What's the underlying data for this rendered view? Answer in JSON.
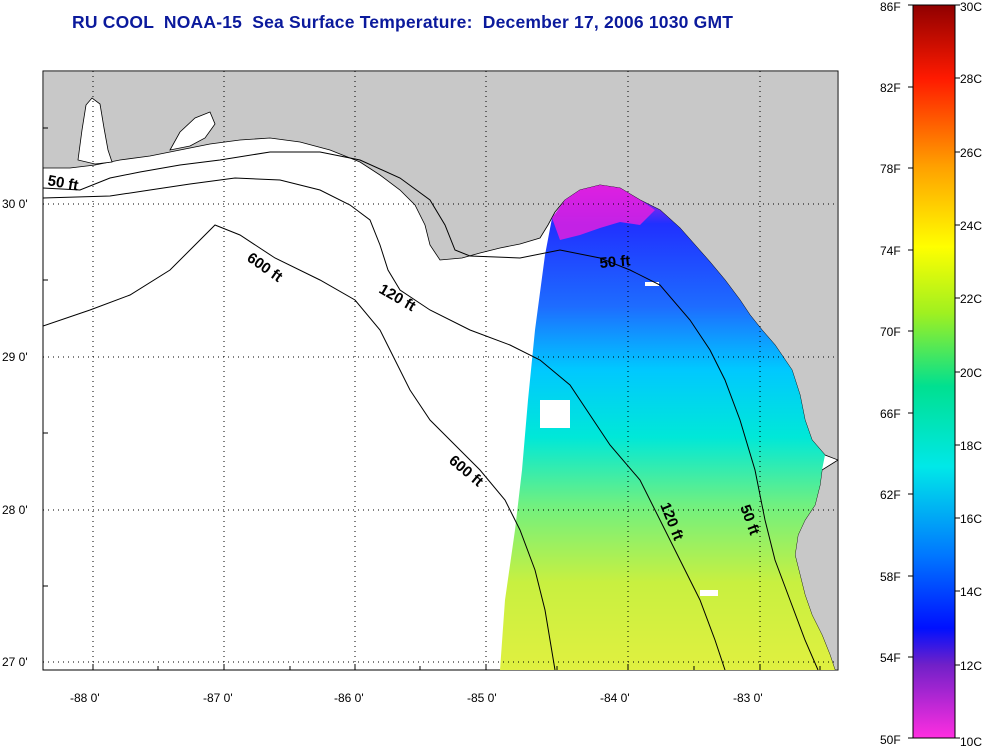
{
  "title": "RU COOL  NOAA-15  Sea Surface Temperature:  December 17, 2006 1030 GMT",
  "longitude_labels": [
    "-88 0'",
    "-87 0'",
    "-86 0'",
    "-85 0'",
    "-84 0'",
    "-83 0'"
  ],
  "latitude_labels": [
    "30 0'",
    "29 0'",
    "28 0'",
    "27 0'"
  ],
  "contour_labels": {
    "c50_west": "50 ft",
    "c600_north": "600 ft",
    "c120_west": "120 ft",
    "c600_south": "600 ft",
    "c50_east": "50 ft",
    "c120_east": "120 ft",
    "c50_south": "50 ft"
  },
  "colorbar": {
    "fahrenheit_labels": [
      "86F",
      "82F",
      "78F",
      "74F",
      "70F",
      "66F",
      "62F",
      "58F",
      "54F",
      "50F"
    ],
    "celsius_labels": [
      "30C",
      "28C",
      "26C",
      "24C",
      "22C",
      "20C",
      "18C",
      "16C",
      "14C",
      "12C",
      "10C"
    ]
  },
  "colors": {
    "title": "#0b1a9c",
    "land": "#c8c8c8",
    "grid": "#000000"
  }
}
